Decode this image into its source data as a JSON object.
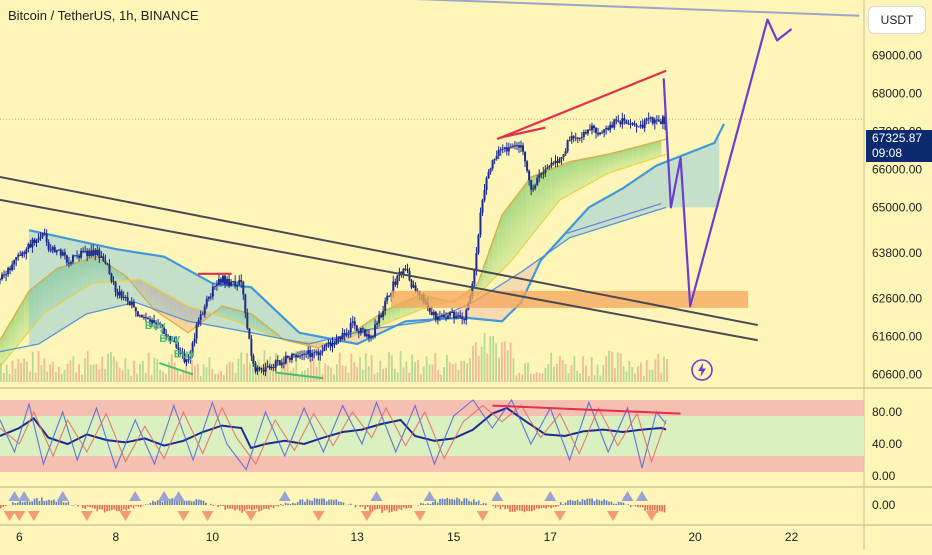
{
  "symbol_title": "Bitcoin / TetherUS, 1h, BINANCE",
  "currency": "USDT",
  "last_price": "67325.87",
  "countdown": "09:08",
  "colors": {
    "candle": "#1d2b8c",
    "rsi": "#1d2b8c",
    "stoch_k": "#4a63d9",
    "stoch_d": "#e06b5a",
    "trendline_red": "#e0304a",
    "projection": "#6a3ed1",
    "support_zone": "#f6a55c"
  },
  "chart_data": [
    {
      "type": "line",
      "panel": "price",
      "title": "Bitcoin / TetherUS, 1h, BINANCE",
      "y_ticks": [
        "69000.00",
        "68000.00",
        "67000.00",
        "66000.00",
        "65000.00",
        "63800.00",
        "62600.00",
        "61600.00",
        "60600.00"
      ],
      "y_tick_values": [
        69000,
        68000,
        67000,
        66000,
        65000,
        63800,
        62600,
        61600,
        60600
      ],
      "ylim": [
        60400,
        70200
      ],
      "x_ticks": [
        "6",
        "8",
        "10",
        "13",
        "15",
        "17",
        "20",
        "22"
      ],
      "x_tick_values": [
        6,
        8,
        10,
        13,
        15,
        17,
        20,
        22
      ],
      "xlim": [
        5.6,
        23.5
      ],
      "series": [
        {
          "values": [
            [
              5.6,
              63100
            ],
            [
              6.0,
              63700
            ],
            [
              6.2,
              64000
            ],
            [
              6.5,
              64400
            ],
            [
              6.6,
              63800
            ],
            [
              6.8,
              63900
            ],
            [
              7.0,
              63600
            ],
            [
              7.3,
              63800
            ],
            [
              7.6,
              63800
            ],
            [
              7.8,
              63600
            ],
            [
              8.0,
              62800
            ],
            [
              8.3,
              62500
            ],
            [
              8.6,
              62000
            ],
            [
              8.9,
              61900
            ],
            [
              9.2,
              61400
            ],
            [
              9.5,
              60900
            ],
            [
              9.7,
              62000
            ],
            [
              10.0,
              62800
            ],
            [
              10.2,
              63100
            ],
            [
              10.4,
              63000
            ],
            [
              10.6,
              63100
            ],
            [
              10.75,
              61600
            ],
            [
              10.85,
              60800
            ],
            [
              11.1,
              60700
            ],
            [
              11.5,
              61000
            ],
            [
              11.8,
              61100
            ],
            [
              12.2,
              61200
            ],
            [
              12.6,
              61500
            ],
            [
              12.9,
              61900
            ],
            [
              13.1,
              61700
            ],
            [
              13.3,
              61600
            ],
            [
              13.5,
              62200
            ],
            [
              13.8,
              63100
            ],
            [
              14.0,
              63400
            ],
            [
              14.1,
              63000
            ],
            [
              14.3,
              62800
            ],
            [
              14.5,
              62200
            ],
            [
              14.7,
              62100
            ],
            [
              14.9,
              62200
            ],
            [
              15.2,
              62000
            ],
            [
              15.4,
              63000
            ],
            [
              15.6,
              65300
            ],
            [
              15.8,
              66200
            ],
            [
              16.0,
              66500
            ],
            [
              16.2,
              66600
            ],
            [
              16.4,
              66700
            ],
            [
              16.6,
              65500
            ],
            [
              16.8,
              65900
            ],
            [
              17.0,
              66200
            ],
            [
              17.2,
              66200
            ],
            [
              17.4,
              66800
            ],
            [
              17.6,
              66800
            ],
            [
              17.8,
              67100
            ],
            [
              18.0,
              67000
            ],
            [
              18.3,
              67200
            ],
            [
              18.6,
              67300
            ],
            [
              18.9,
              67200
            ],
            [
              19.2,
              67300
            ],
            [
              19.4,
              67300
            ]
          ]
        },
        {
          "values": [
            [
              5.6,
              61500
            ],
            [
              6.2,
              62800
            ],
            [
              6.8,
              63400
            ],
            [
              7.6,
              63700
            ],
            [
              8.2,
              63200
            ],
            [
              8.8,
              62300
            ],
            [
              9.5,
              61700
            ],
            [
              10.2,
              62400
            ],
            [
              10.8,
              62200
            ],
            [
              11.5,
              61500
            ],
            [
              12.2,
              61300
            ],
            [
              12.9,
              61700
            ],
            [
              13.6,
              62300
            ],
            [
              14.3,
              62700
            ],
            [
              15.0,
              62500
            ],
            [
              15.5,
              63000
            ],
            [
              16.0,
              64800
            ],
            [
              16.6,
              65800
            ],
            [
              17.4,
              66200
            ],
            [
              18.2,
              66400
            ],
            [
              18.8,
              66600
            ],
            [
              19.4,
              66800
            ]
          ]
        },
        {
          "values": [
            [
              5.6,
              60800
            ],
            [
              6.5,
              62200
            ],
            [
              7.5,
              63000
            ],
            [
              8.5,
              63100
            ],
            [
              9.5,
              62400
            ],
            [
              10.5,
              62000
            ],
            [
              11.5,
              61500
            ],
            [
              12.5,
              61400
            ],
            [
              13.5,
              61900
            ],
            [
              14.5,
              62400
            ],
            [
              15.5,
              62700
            ],
            [
              16.2,
              63600
            ],
            [
              17.2,
              65200
            ],
            [
              18.2,
              65900
            ],
            [
              19.4,
              66400
            ]
          ]
        },
        {
          "values": [
            [
              6.2,
              64400
            ],
            [
              8.0,
              63900
            ],
            [
              9.0,
              63700
            ],
            [
              10.0,
              63000
            ],
            [
              10.8,
              62900
            ],
            [
              11.8,
              61700
            ],
            [
              13.0,
              61400
            ],
            [
              14.0,
              62000
            ],
            [
              15.2,
              62100
            ],
            [
              16.0,
              62000
            ],
            [
              16.4,
              62500
            ],
            [
              16.8,
              63600
            ],
            [
              17.8,
              65000
            ],
            [
              18.5,
              65500
            ],
            [
              19.2,
              66100
            ],
            [
              20.4,
              66700
            ],
            [
              20.6,
              67200
            ]
          ]
        },
        {
          "values": [
            [
              5.6,
              61200
            ],
            [
              6.4,
              61400
            ],
            [
              7.4,
              62200
            ],
            [
              8.4,
              62500
            ],
            [
              9.5,
              62000
            ],
            [
              10.8,
              61700
            ],
            [
              12.0,
              61400
            ],
            [
              13.3,
              61800
            ],
            [
              14.5,
              62000
            ],
            [
              15.4,
              62500
            ],
            [
              16.4,
              63300
            ],
            [
              17.4,
              64200
            ],
            [
              18.4,
              64600
            ],
            [
              19.4,
              65000
            ]
          ]
        }
      ],
      "annotations": [
        {
          "text": "Buy",
          "x": 8.6,
          "y": 61800
        },
        {
          "text": "Buy",
          "x": 8.9,
          "y": 61450
        },
        {
          "text": "Buy",
          "x": 9.2,
          "y": 61050
        }
      ]
    },
    {
      "type": "line",
      "panel": "rsi",
      "y_ticks": [
        "80.00",
        "40.00",
        "0.00"
      ],
      "y_tick_values": [
        80,
        40,
        0
      ],
      "ylim": [
        -15,
        105
      ],
      "series": [
        {
          "values": [
            [
              5.6,
              50
            ],
            [
              6.0,
              60
            ],
            [
              6.3,
              72
            ],
            [
              6.6,
              48
            ],
            [
              7.0,
              40
            ],
            [
              7.4,
              52
            ],
            [
              7.8,
              45
            ],
            [
              8.2,
              42
            ],
            [
              8.6,
              47
            ],
            [
              9.0,
              38
            ],
            [
              9.4,
              44
            ],
            [
              9.8,
              55
            ],
            [
              10.2,
              63
            ],
            [
              10.6,
              60
            ],
            [
              10.8,
              35
            ],
            [
              11.1,
              40
            ],
            [
              11.5,
              44
            ],
            [
              11.9,
              40
            ],
            [
              12.3,
              48
            ],
            [
              12.7,
              55
            ],
            [
              13.1,
              58
            ],
            [
              13.5,
              65
            ],
            [
              13.9,
              70
            ],
            [
              14.2,
              50
            ],
            [
              14.6,
              44
            ],
            [
              15.0,
              47
            ],
            [
              15.4,
              58
            ],
            [
              15.8,
              78
            ],
            [
              16.1,
              85
            ],
            [
              16.5,
              68
            ],
            [
              16.9,
              52
            ],
            [
              17.3,
              50
            ],
            [
              17.7,
              56
            ],
            [
              18.1,
              58
            ],
            [
              18.5,
              55
            ],
            [
              18.9,
              58
            ],
            [
              19.3,
              60
            ],
            [
              19.4,
              58
            ]
          ]
        },
        {
          "values": [
            [
              5.6,
              70
            ],
            [
              5.9,
              30
            ],
            [
              6.2,
              90
            ],
            [
              6.5,
              15
            ],
            [
              6.9,
              80
            ],
            [
              7.2,
              20
            ],
            [
              7.6,
              85
            ],
            [
              8.0,
              10
            ],
            [
              8.4,
              70
            ],
            [
              8.8,
              15
            ],
            [
              9.2,
              88
            ],
            [
              9.6,
              20
            ],
            [
              10.0,
              92
            ],
            [
              10.3,
              40
            ],
            [
              10.7,
              8
            ],
            [
              11.1,
              80
            ],
            [
              11.5,
              25
            ],
            [
              11.9,
              85
            ],
            [
              12.3,
              30
            ],
            [
              12.7,
              88
            ],
            [
              13.1,
              40
            ],
            [
              13.4,
              92
            ],
            [
              13.8,
              30
            ],
            [
              14.2,
              88
            ],
            [
              14.6,
              15
            ],
            [
              15.0,
              75
            ],
            [
              15.4,
              95
            ],
            [
              15.8,
              60
            ],
            [
              16.2,
              95
            ],
            [
              16.6,
              40
            ],
            [
              17.0,
              85
            ],
            [
              17.4,
              20
            ],
            [
              17.8,
              92
            ],
            [
              18.2,
              30
            ],
            [
              18.6,
              85
            ],
            [
              18.9,
              10
            ],
            [
              19.2,
              80
            ],
            [
              19.4,
              65
            ]
          ]
        },
        {
          "values": [
            [
              5.6,
              60
            ],
            [
              6.0,
              40
            ],
            [
              6.3,
              80
            ],
            [
              6.7,
              25
            ],
            [
              7.0,
              70
            ],
            [
              7.4,
              30
            ],
            [
              7.8,
              78
            ],
            [
              8.2,
              18
            ],
            [
              8.6,
              62
            ],
            [
              9.0,
              22
            ],
            [
              9.4,
              80
            ],
            [
              9.8,
              28
            ],
            [
              10.2,
              85
            ],
            [
              10.5,
              48
            ],
            [
              10.9,
              15
            ],
            [
              11.3,
              70
            ],
            [
              11.7,
              32
            ],
            [
              12.1,
              78
            ],
            [
              12.5,
              38
            ],
            [
              12.9,
              80
            ],
            [
              13.3,
              48
            ],
            [
              13.6,
              85
            ],
            [
              14.0,
              38
            ],
            [
              14.4,
              80
            ],
            [
              14.8,
              22
            ],
            [
              15.2,
              68
            ],
            [
              15.6,
              88
            ],
            [
              16.0,
              68
            ],
            [
              16.4,
              88
            ],
            [
              16.8,
              48
            ],
            [
              17.2,
              78
            ],
            [
              17.6,
              28
            ],
            [
              18.0,
              85
            ],
            [
              18.4,
              38
            ],
            [
              18.8,
              78
            ],
            [
              19.1,
              18
            ],
            [
              19.4,
              70
            ]
          ]
        }
      ]
    },
    {
      "type": "bar",
      "panel": "oscillator",
      "y_ticks": [
        "0.00"
      ],
      "y_tick_values": [
        0
      ]
    }
  ]
}
